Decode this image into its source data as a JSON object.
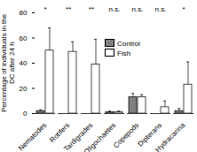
{
  "chart_data": {
    "type": "bar",
    "y_label": "Percentage of individuals in the DC after 24 h",
    "categories": [
      "Nematodes",
      "Rotifers",
      "Tardigrades",
      "Oligochaetes",
      "Copepods",
      "Dipterans",
      "Hydracarina"
    ],
    "series": [
      {
        "name": "Control",
        "color": "#808080",
        "values": [
          2,
          0,
          0,
          1,
          13,
          0,
          2
        ],
        "errors": [
          1,
          0,
          0,
          1,
          3,
          0,
          2
        ]
      },
      {
        "name": "Fish",
        "color": "#ffffff",
        "values": [
          50,
          49,
          39,
          1,
          13,
          5,
          23
        ],
        "errors": [
          18,
          8,
          20,
          1,
          2,
          5,
          18
        ]
      }
    ],
    "annotations": [
      "*",
      "**",
      "**",
      "n.s.",
      "n.s.",
      "n.s.",
      "*"
    ],
    "ylim": [
      0,
      80
    ],
    "yticks": [
      0,
      20,
      40,
      60,
      80
    ],
    "legend": "top-right"
  }
}
